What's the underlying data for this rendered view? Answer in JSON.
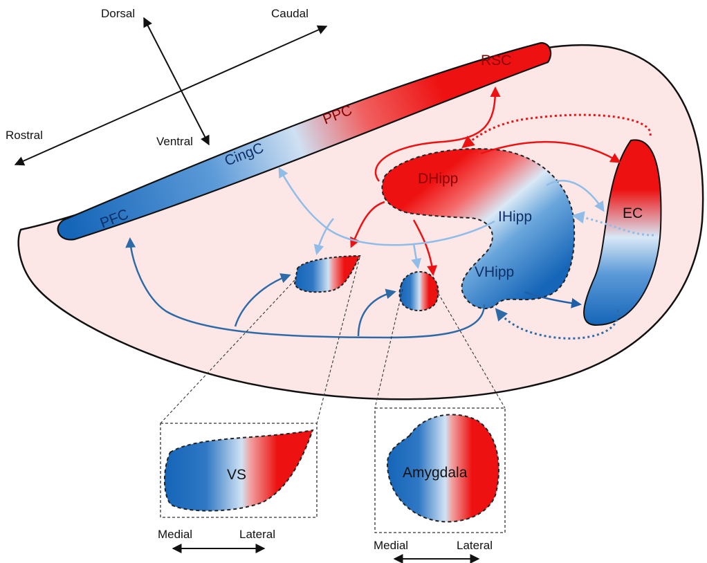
{
  "axes": {
    "dorsal": "Dorsal",
    "ventral": "Ventral",
    "rostral": "Rostral",
    "caudal": "Caudal"
  },
  "regions": {
    "rsc": "RSC",
    "ppc": "PPC",
    "cingc": "CingC",
    "pfc": "PFC",
    "dhipp": "DHipp",
    "ihipp": "IHipp",
    "vhipp": "VHipp",
    "ec": "EC",
    "vs": "VS",
    "amygdala": "Amygdala"
  },
  "insets": {
    "vs_medial": "Medial",
    "vs_lateral": "Lateral",
    "amyg_medial": "Medial",
    "amyg_lateral": "Lateral"
  },
  "colors": {
    "red": "#ee1111",
    "blue": "#1565b8",
    "light_blue": "#8fbde8",
    "pale": "#fde6e6",
    "steel_blue": "#2e6aa6"
  }
}
